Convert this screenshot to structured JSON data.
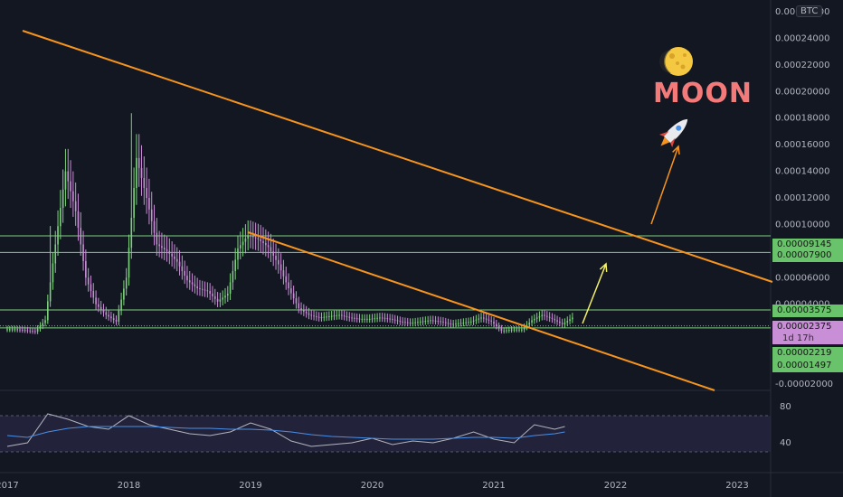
{
  "currency_label": "BTC",
  "annotation_text": "MOON",
  "moon_icon": "full-moon-icon",
  "rocket_icon": "rocket-icon",
  "timer_label": "1d 17h",
  "colors": {
    "background": "#131722",
    "trendline": "#f7941d",
    "support": "#7ed27e",
    "arrow_yellow": "#f4f06a",
    "candle_up": "#7ed27e",
    "candle_down": "#c98fd6",
    "candle_neutral": "#b2b5be",
    "rsi_line": "#b2b5be",
    "rsi_ma": "#4a8fe7"
  },
  "price_tags": [
    {
      "label": "0.00009145",
      "style": "green"
    },
    {
      "label": "0.00007900",
      "style": "green"
    },
    {
      "label": "0.00003575",
      "style": "green"
    },
    {
      "label": "0.00002375",
      "style": "pink"
    },
    {
      "label": "0.00002219",
      "style": "green"
    },
    {
      "label": "0.00001497",
      "style": "green"
    }
  ],
  "chart_data": [
    {
      "type": "line",
      "subtype": "candlestick",
      "series": [
        {
          "x": [
            "2017-01",
            "2017-02",
            "2017-03",
            "2017-04",
            "2017-05",
            "2017-06",
            "2017-07",
            "2017-08",
            "2017-09",
            "2017-10",
            "2017-11",
            "2017-12",
            "2018-01",
            "2018-02",
            "2018-03",
            "2018-04",
            "2018-05",
            "2018-06",
            "2018-07",
            "2018-08",
            "2018-09",
            "2018-10",
            "2018-11",
            "2018-12",
            "2019-01",
            "2019-02",
            "2019-03",
            "2019-04",
            "2019-05",
            "2019-06",
            "2019-07",
            "2019-08",
            "2019-09",
            "2019-10",
            "2019-11",
            "2019-12",
            "2020-01",
            "2020-02",
            "2020-03",
            "2020-04",
            "2020-05",
            "2020-06",
            "2020-07",
            "2020-08",
            "2020-09",
            "2020-10",
            "2020-11",
            "2020-12",
            "2021-01",
            "2021-02",
            "2021-03",
            "2021-04",
            "2021-05",
            "2021-06",
            "2021-07",
            "2021-08"
          ],
          "values": [
            2.12e-05,
            2.05e-05,
            1.95e-05,
            2.8e-05,
            8.5e-05,
            0.00014,
            0.00011,
            6e-05,
            4e-05,
            3.2e-05,
            2.7e-05,
            6e-05,
            0.00015,
            0.00012,
            8.5e-05,
            8e-05,
            7.2e-05,
            5.8e-05,
            5.2e-05,
            5e-05,
            4.2e-05,
            4.8e-05,
            8.2e-05,
            9.2e-05,
            8.9e-05,
            8.3e-05,
            7e-05,
            5.2e-05,
            3.7e-05,
            3.2e-05,
            3e-05,
            3.1e-05,
            3.2e-05,
            3e-05,
            2.9e-05,
            2.9e-05,
            3e-05,
            2.9e-05,
            2.7e-05,
            2.6e-05,
            2.7e-05,
            2.8e-05,
            2.7e-05,
            2.5e-05,
            2.6e-05,
            2.7e-05,
            3e-05,
            2.7e-05,
            2e-05,
            2.1e-05,
            2.1e-05,
            2.8e-05,
            3.2e-05,
            2.9e-05,
            2.5e-05,
            3e-05
          ]
        }
      ],
      "ylim": [
        -2e-05,
        0.00026
      ],
      "y_ticks": [
        "0.00026000",
        "0.00024000",
        "0.00022000",
        "0.00020000",
        "0.00018000",
        "0.00016000",
        "0.00014000",
        "0.00012000",
        "0.00010000",
        "0.00008000",
        "0.00006000",
        "0.00004000",
        "0.00002000",
        "-0.00002000"
      ],
      "x_ticks": [
        "2017",
        "2018",
        "2019",
        "2020",
        "2021",
        "2022",
        "2023"
      ],
      "grid": false
    },
    {
      "type": "line",
      "x": [
        "2017-01",
        "2017-03",
        "2017-05",
        "2017-07",
        "2017-09",
        "2017-11",
        "2018-01",
        "2018-03",
        "2018-05",
        "2018-07",
        "2018-09",
        "2018-11",
        "2019-01",
        "2019-03",
        "2019-05",
        "2019-07",
        "2019-09",
        "2019-11",
        "2020-01",
        "2020-03",
        "2020-05",
        "2020-07",
        "2020-09",
        "2020-11",
        "2021-01",
        "2021-03",
        "2021-05",
        "2021-07",
        "2021-08"
      ],
      "series": [
        {
          "values": [
            36,
            40,
            72,
            66,
            58,
            55,
            70,
            60,
            55,
            50,
            48,
            52,
            62,
            55,
            42,
            36,
            38,
            40,
            45,
            38,
            42,
            40,
            45,
            52,
            44,
            40,
            60,
            55,
            58
          ]
        },
        {
          "values": [
            48,
            46,
            52,
            56,
            58,
            58,
            58,
            58,
            57,
            56,
            56,
            55,
            55,
            54,
            52,
            49,
            47,
            46,
            45,
            44,
            44,
            44,
            45,
            46,
            46,
            45,
            48,
            50,
            52
          ]
        }
      ],
      "ylim": [
        20,
        90
      ],
      "y_ticks": [
        "80",
        "40"
      ],
      "grid": false
    }
  ]
}
